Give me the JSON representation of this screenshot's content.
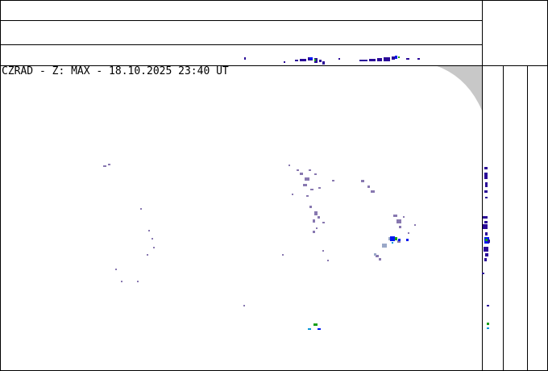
{
  "header": {
    "title": "CZRAD - Z: MAX - 18.10.2025 23:40 UT",
    "product": "CZRAD",
    "quantity": "Z",
    "projection": "MAX",
    "date": "18.10.2025",
    "time": "23:40 UT"
  },
  "colors": {
    "weak_echo": "#8878b0",
    "light_blue_echo": "#9aa8c8",
    "dark_blue_echo": "#2a0a98",
    "blue_echo": "#0018f0",
    "green_echo": "#18a018",
    "cyan_echo": "#0898d8",
    "out_of_range": "#c8c8c8"
  }
}
